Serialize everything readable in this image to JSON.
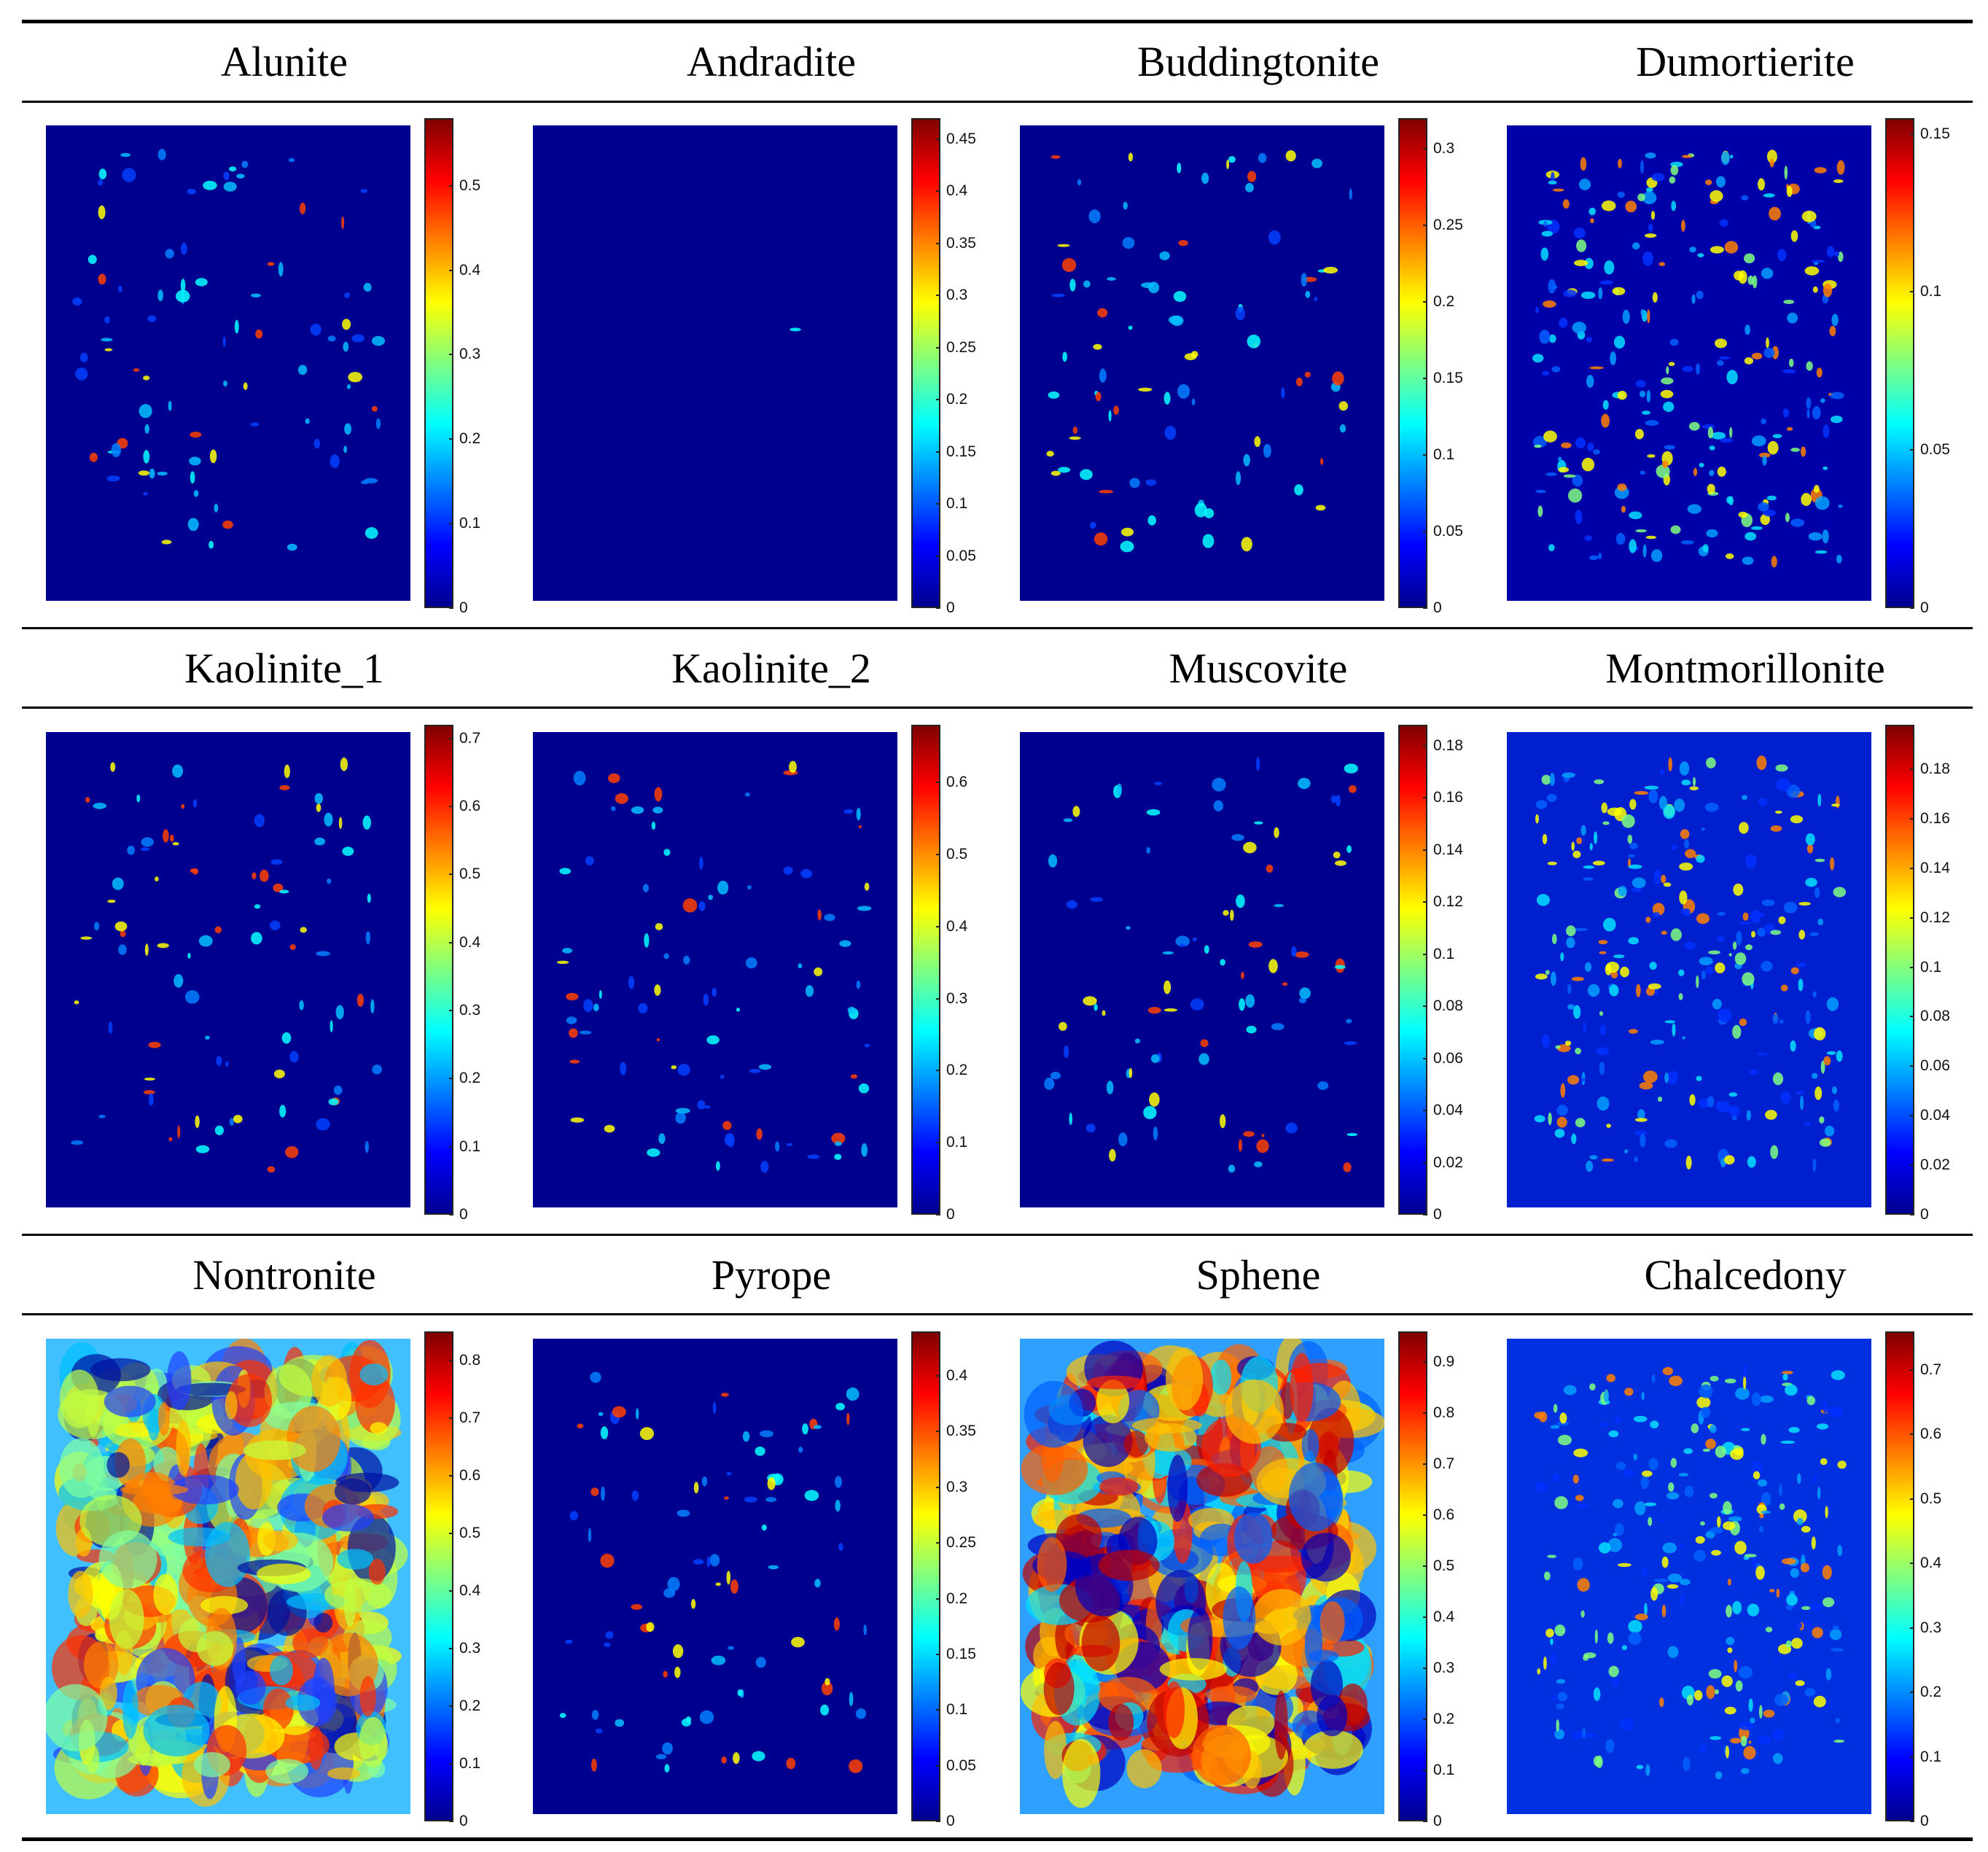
{
  "panels": [
    {
      "title": "Alunite",
      "ticks": [
        "0",
        "0.1",
        "0.2",
        "0.3",
        "0.4",
        "0.5"
      ],
      "max": 0.58,
      "style": "sparse",
      "colors": [
        "#00008f"
      ]
    },
    {
      "title": "Andradite",
      "ticks": [
        "0",
        "0.05",
        "0.1",
        "0.15",
        "0.2",
        "0.25",
        "0.3",
        "0.35",
        "0.4",
        "0.45"
      ],
      "max": 0.47,
      "style": "single",
      "colors": [
        "#00008f"
      ]
    },
    {
      "title": "Buddingtonite",
      "ticks": [
        "0",
        "0.05",
        "0.1",
        "0.15",
        "0.2",
        "0.25",
        "0.3"
      ],
      "max": 0.32,
      "style": "sparse",
      "colors": [
        "#00008f"
      ]
    },
    {
      "title": "Dumortierite",
      "ticks": [
        "0",
        "0.05",
        "0.1",
        "0.15"
      ],
      "max": 0.155,
      "style": "medium",
      "colors": [
        "#0000a8"
      ]
    },
    {
      "title": "Kaolinite_1",
      "ticks": [
        "0",
        "0.1",
        "0.2",
        "0.3",
        "0.4",
        "0.5",
        "0.6",
        "0.7"
      ],
      "max": 0.72,
      "style": "sparse",
      "colors": [
        "#00008f"
      ]
    },
    {
      "title": "Kaolinite_2",
      "ticks": [
        "0",
        "0.1",
        "0.2",
        "0.3",
        "0.4",
        "0.5",
        "0.6"
      ],
      "max": 0.68,
      "style": "sparse",
      "colors": [
        "#00008f"
      ]
    },
    {
      "title": "Muscovite",
      "ticks": [
        "0",
        "0.02",
        "0.04",
        "0.06",
        "0.08",
        "0.1",
        "0.12",
        "0.14",
        "0.16",
        "0.18"
      ],
      "max": 0.188,
      "style": "sparse",
      "colors": [
        "#00008f"
      ]
    },
    {
      "title": "Montmorillonite",
      "ticks": [
        "0",
        "0.02",
        "0.04",
        "0.06",
        "0.08",
        "0.1",
        "0.12",
        "0.14",
        "0.16",
        "0.18"
      ],
      "max": 0.198,
      "style": "medium",
      "colors": [
        "#0020d0"
      ]
    },
    {
      "title": "Nontronite",
      "ticks": [
        "0",
        "0.1",
        "0.2",
        "0.3",
        "0.4",
        "0.5",
        "0.6",
        "0.7",
        "0.8"
      ],
      "max": 0.85,
      "style": "dense",
      "colors": [
        "#40c0ff"
      ]
    },
    {
      "title": "Pyrope",
      "ticks": [
        "0",
        "0.05",
        "0.1",
        "0.15",
        "0.2",
        "0.25",
        "0.3",
        "0.35",
        "0.4"
      ],
      "max": 0.44,
      "style": "sparse",
      "colors": [
        "#00008f"
      ]
    },
    {
      "title": "Sphene",
      "ticks": [
        "0",
        "0.1",
        "0.2",
        "0.3",
        "0.4",
        "0.5",
        "0.6",
        "0.7",
        "0.8",
        "0.9"
      ],
      "max": 0.96,
      "style": "hot",
      "colors": [
        "#30a0ff"
      ]
    },
    {
      "title": "Chalcedony",
      "ticks": [
        "0",
        "0.1",
        "0.2",
        "0.3",
        "0.4",
        "0.5",
        "0.6",
        "0.7"
      ],
      "max": 0.76,
      "style": "medium",
      "colors": [
        "#0030e0"
      ]
    }
  ]
}
